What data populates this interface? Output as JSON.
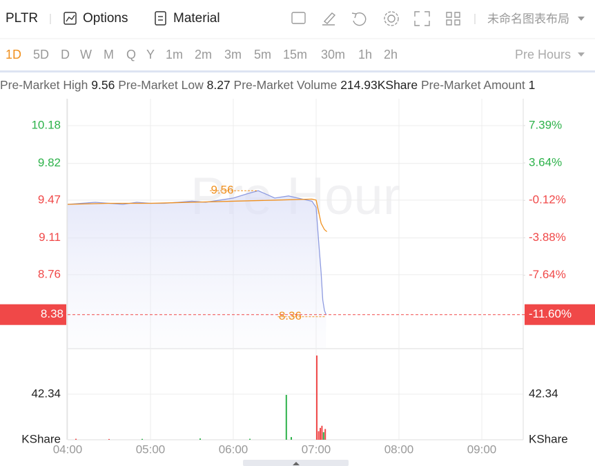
{
  "toolbar": {
    "symbol": "PLTR",
    "options": "Options",
    "material": "Material",
    "layout": "未命名图表布局"
  },
  "periods": {
    "items": [
      "1D",
      "5D",
      "D",
      "W",
      "M",
      "Q",
      "Y",
      "1m",
      "2m",
      "3m",
      "5m",
      "15m",
      "30m",
      "1h",
      "2h"
    ],
    "session": "Pre Hours"
  },
  "stats": [
    {
      "label": "Pre-Market High",
      "value": "9.56"
    },
    {
      "label": "Pre-Market Low",
      "value": "8.27"
    },
    {
      "label": "Pre-Market Volume",
      "value": "214.93KShare"
    },
    {
      "label": "Pre-Market Amount",
      "value": "1"
    }
  ],
  "chart_data": {
    "type": "line",
    "watermark": "Pre Hour",
    "grid": true,
    "xlim": [
      4,
      9.5
    ],
    "xticks": [
      {
        "value": 4,
        "label": "04:00"
      },
      {
        "value": 5,
        "label": "05:00"
      },
      {
        "value": 6,
        "label": "06:00"
      },
      {
        "value": 7,
        "label": "07:00"
      },
      {
        "value": 8,
        "label": "08:00"
      },
      {
        "value": 9,
        "label": "09:00"
      }
    ],
    "ylim": [
      8.056,
      10.436
    ],
    "yticks": [
      10.18,
      9.82,
      9.47,
      9.11,
      8.76
    ],
    "y2lim": [
      -15.01,
      10.09
    ],
    "y2ticks": [
      {
        "value": 7.39,
        "label": "7.39%"
      },
      {
        "value": 3.64,
        "label": "3.64%"
      },
      {
        "value": -0.12,
        "label": "-0.12%"
      },
      {
        "value": -3.88,
        "label": "-3.88%"
      },
      {
        "value": -7.64,
        "label": "-7.64%"
      }
    ],
    "series": [
      {
        "color": "#8e9be0",
        "x": [
          4.0,
          4.1667,
          4.3333,
          4.5,
          4.6667,
          4.8333,
          5.0,
          5.1667,
          5.3333,
          5.5,
          5.6667,
          5.8333,
          6.0,
          6.1667,
          6.3,
          6.4167,
          6.5,
          6.6667,
          6.8333,
          6.95,
          7.0,
          7.03,
          7.06,
          7.08,
          7.1,
          7.12
        ],
        "values": [
          9.43,
          9.44,
          9.45,
          9.44,
          9.43,
          9.45,
          9.44,
          9.44,
          9.45,
          9.46,
          9.45,
          9.47,
          9.49,
          9.53,
          9.56,
          9.52,
          9.49,
          9.51,
          9.48,
          9.46,
          9.4,
          9.08,
          8.78,
          8.52,
          8.42,
          8.38
        ]
      },
      {
        "color": "#f0901e",
        "x": [
          4.0,
          4.5,
          5.0,
          5.5,
          6.0,
          6.5,
          6.95,
          7.0,
          7.03,
          7.06,
          7.1,
          7.13
        ],
        "values": [
          9.43,
          9.44,
          9.44,
          9.45,
          9.46,
          9.47,
          9.48,
          9.47,
          9.36,
          9.25,
          9.19,
          9.17
        ]
      }
    ],
    "last_price": 8.38,
    "last_change": {
      "value": -11.6,
      "label": "-11.60%"
    },
    "annotations": [
      {
        "x": 6.3,
        "y": 9.56
      },
      {
        "x": 7.12,
        "y": 8.36
      }
    ],
    "volume": {
      "ylim": [
        0,
        84.68
      ],
      "yticks": [
        {
          "value": 0,
          "label": "KShare"
        },
        42.34
      ],
      "series": [
        {
          "color": "#2db24a",
          "x": [
            4.9,
            5.6,
            6.2,
            6.64,
            6.7,
            7.09
          ],
          "values": [
            0.8,
            1.2,
            0.9,
            41.7,
            2.5,
            7
          ]
        },
        {
          "color": "#f04848",
          "x": [
            4.1,
            4.5,
            7.008,
            7.03,
            7.05,
            7.07,
            7.11
          ],
          "values": [
            0.9,
            0.7,
            78.3,
            8,
            11,
            13,
            10
          ]
        }
      ]
    }
  }
}
